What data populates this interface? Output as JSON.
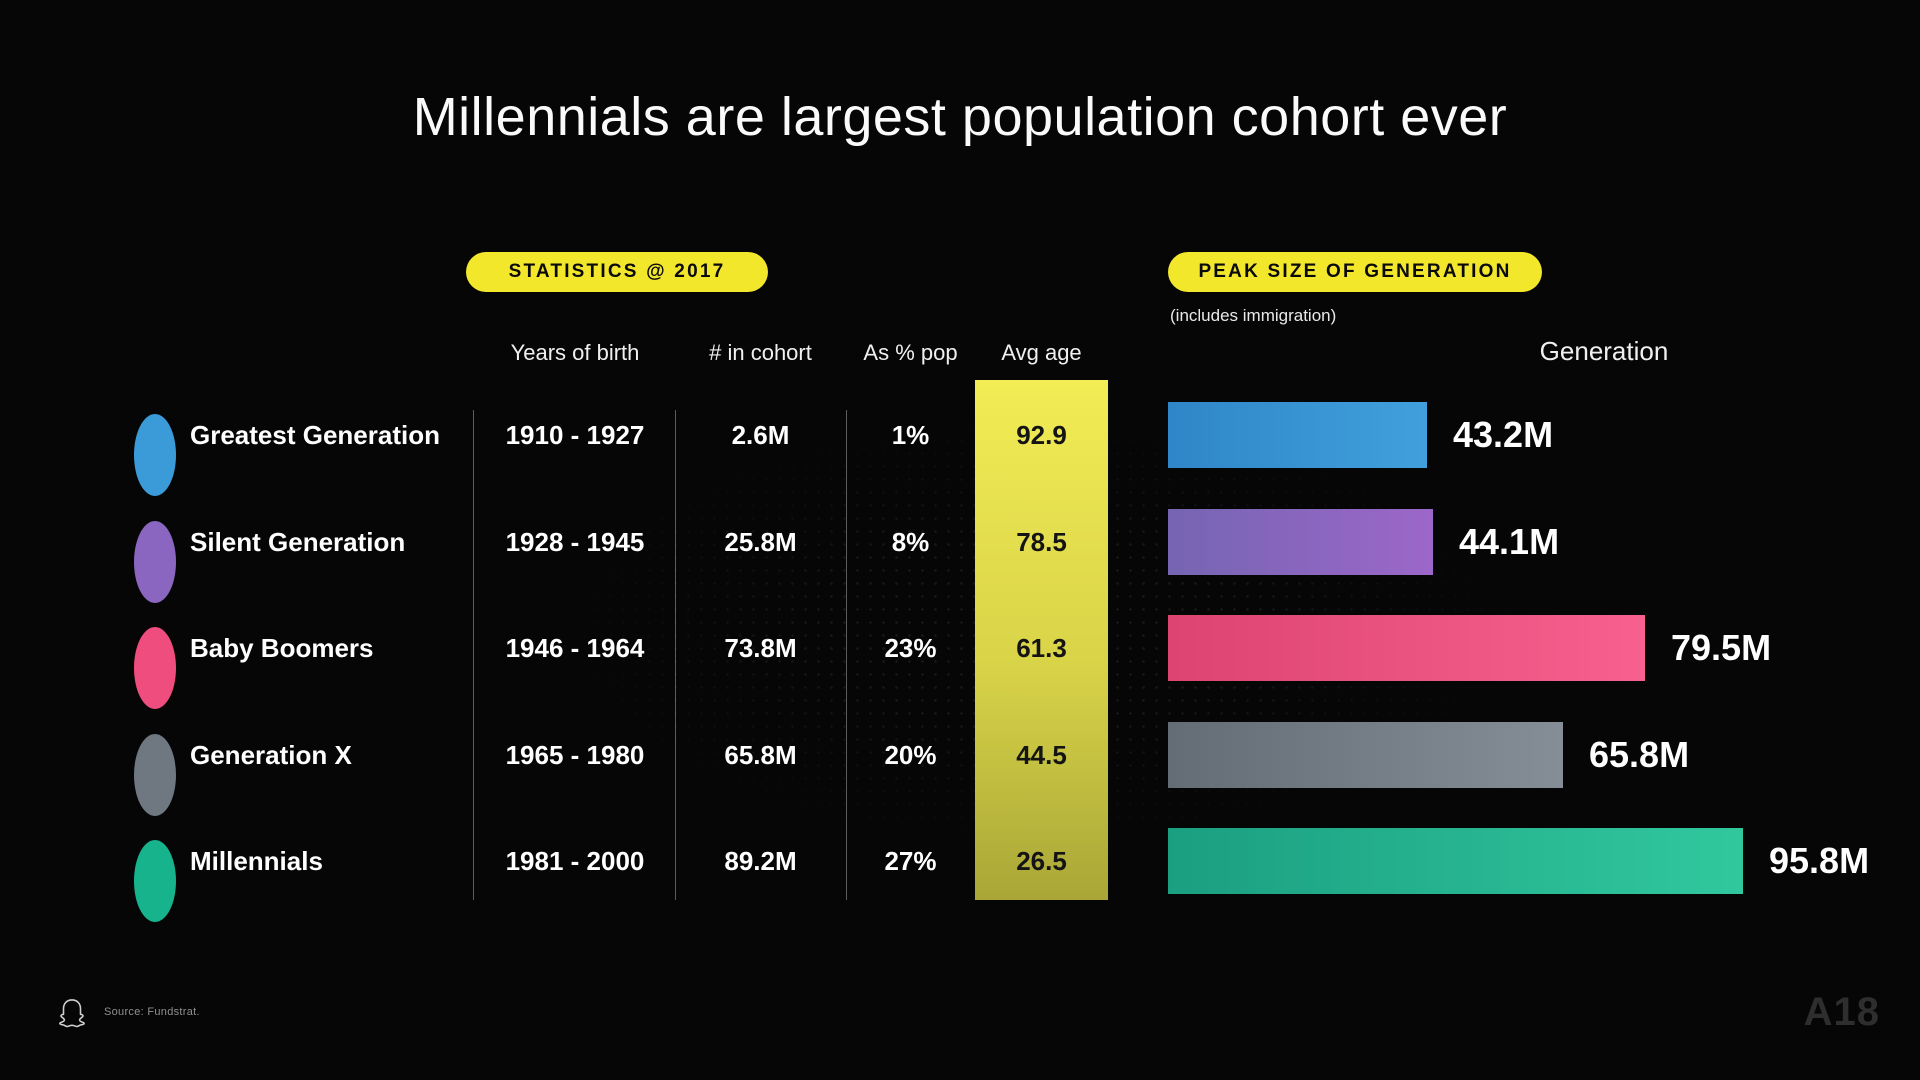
{
  "slide": {
    "title": "Millennials are largest population cohort ever",
    "stats_badge": "STATISTICS @ 2017",
    "peak_badge": "PEAK SIZE OF GENERATION",
    "peak_note": "(includes immigration)",
    "columns": {
      "years": "Years of birth",
      "cohort": "# in cohort",
      "pct": "As % pop",
      "age": "Avg age",
      "generation": "Generation"
    },
    "source": "Source: Fundstrat.",
    "watermark": "A18"
  },
  "rows": [
    {
      "name": "Greatest Generation",
      "years": "1910 - 1927",
      "cohort": "2.6M",
      "pct": "1%",
      "avg_age": "92.9",
      "peak_label": "43.2M",
      "peak_value": 43.2,
      "dot_color": "#3a9bd8",
      "bar_from": "#2f86c8",
      "bar_to": "#41a0dc"
    },
    {
      "name": "Silent Generation",
      "years": "1928 - 1945",
      "cohort": "25.8M",
      "pct": "8%",
      "avg_age": "78.5",
      "peak_label": "44.1M",
      "peak_value": 44.1,
      "dot_color": "#8a66c0",
      "bar_from": "#7565b2",
      "bar_to": "#9c67c9"
    },
    {
      "name": "Baby Boomers",
      "years": "1946 - 1964",
      "cohort": "73.8M",
      "pct": "23%",
      "avg_age": "61.3",
      "peak_label": "79.5M",
      "peak_value": 79.5,
      "dot_color": "#ef4d7d",
      "bar_from": "#dd4470",
      "bar_to": "#f7608f"
    },
    {
      "name": "Generation X",
      "years": "1965 - 1980",
      "cohort": "65.8M",
      "pct": "20%",
      "avg_age": "44.5",
      "peak_label": "65.8M",
      "peak_value": 65.8,
      "dot_color": "#6f7781",
      "bar_from": "#646c76",
      "bar_to": "#858d97"
    },
    {
      "name": "Millennials",
      "years": "1981 - 2000",
      "cohort": "89.2M",
      "pct": "27%",
      "avg_age": "26.5",
      "peak_label": "95.8M",
      "peak_value": 95.8,
      "dot_color": "#17b38d",
      "bar_from": "#1b9f81",
      "bar_to": "#31c89e"
    }
  ],
  "chart_data": {
    "type": "bar",
    "orientation": "horizontal",
    "title": "Peak size of generation (includes immigration)",
    "categories": [
      "Greatest Generation",
      "Silent Generation",
      "Baby Boomers",
      "Generation X",
      "Millennials"
    ],
    "values": [
      43.2,
      44.1,
      79.5,
      65.8,
      95.8
    ],
    "unit": "M",
    "value_labels": [
      "43.2M",
      "44.1M",
      "79.5M",
      "65.8M",
      "95.8M"
    ],
    "xlim": [
      0,
      100
    ],
    "legend": false,
    "stats_table": {
      "title": "Statistics @ 2017",
      "columns": [
        "Generation",
        "Years of birth",
        "# in cohort",
        "As % pop",
        "Avg age"
      ],
      "rows": [
        [
          "Greatest Generation",
          "1910 - 1927",
          "2.6M",
          "1%",
          "92.9"
        ],
        [
          "Silent Generation",
          "1928 - 1945",
          "25.8M",
          "8%",
          "78.5"
        ],
        [
          "Baby Boomers",
          "1946 - 1964",
          "73.8M",
          "23%",
          "61.3"
        ],
        [
          "Generation X",
          "1965 - 1980",
          "65.8M",
          "20%",
          "44.5"
        ],
        [
          "Millennials",
          "1981 - 2000",
          "89.2M",
          "27%",
          "26.5"
        ]
      ]
    }
  },
  "colors": {
    "yellow": "#f3e72c",
    "band_top": "#f2ec55",
    "band_mid": "#d8d348",
    "band_bottom": "#a9a637"
  }
}
